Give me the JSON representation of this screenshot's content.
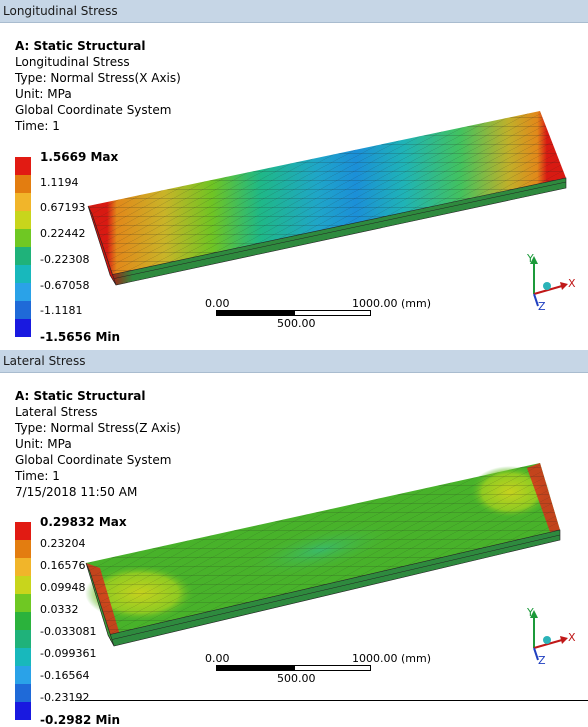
{
  "panels": [
    {
      "title": "Longitudinal Stress",
      "info": [
        "A: Static Structural",
        "Longitudinal Stress",
        "Type: Normal Stress(X Axis)",
        "Unit: MPa",
        "Global Coordinate System",
        "Time: 1"
      ],
      "legend": {
        "max": "1.5669 Max",
        "min": "-1.5656 Min",
        "values": [
          "1.1194",
          "0.67193",
          "0.22442",
          "-0.22308",
          "-0.67058",
          "-1.1181"
        ],
        "colors": [
          "#e11b13",
          "#e37d10",
          "#f1b52a",
          "#c8d51c",
          "#6fc823",
          "#1fb27a",
          "#18b8bc",
          "#2aa2e8",
          "#1f6ad8",
          "#1919e0"
        ]
      },
      "scale": {
        "left": "0.00",
        "mid": "500.00",
        "right": "1000.00 (mm)"
      }
    },
    {
      "title": "Lateral Stress",
      "info": [
        "A: Static Structural",
        "Lateral Stress",
        "Type: Normal Stress(Z Axis)",
        "Unit: MPa",
        "Global Coordinate System",
        "Time: 1",
        "7/15/2018 11:50 AM"
      ],
      "legend": {
        "max": "0.29832 Max",
        "min": "-0.2982 Min",
        "values": [
          "0.23204",
          "0.16576",
          "0.09948",
          "0.0332",
          "-0.033081",
          "-0.099361",
          "-0.16564",
          "-0.23192"
        ],
        "colors": [
          "#e11b13",
          "#e37d10",
          "#f1b52a",
          "#c8d51c",
          "#6fc823",
          "#2bb23c",
          "#1fb27a",
          "#18b8bc",
          "#2aa2e8",
          "#1f6ad8",
          "#1919e0"
        ]
      },
      "scale": {
        "left": "0.00",
        "mid": "500.00",
        "right": "1000.00 (mm)"
      }
    }
  ],
  "triad": {
    "x": "X",
    "y": "Y",
    "z": "Z"
  }
}
